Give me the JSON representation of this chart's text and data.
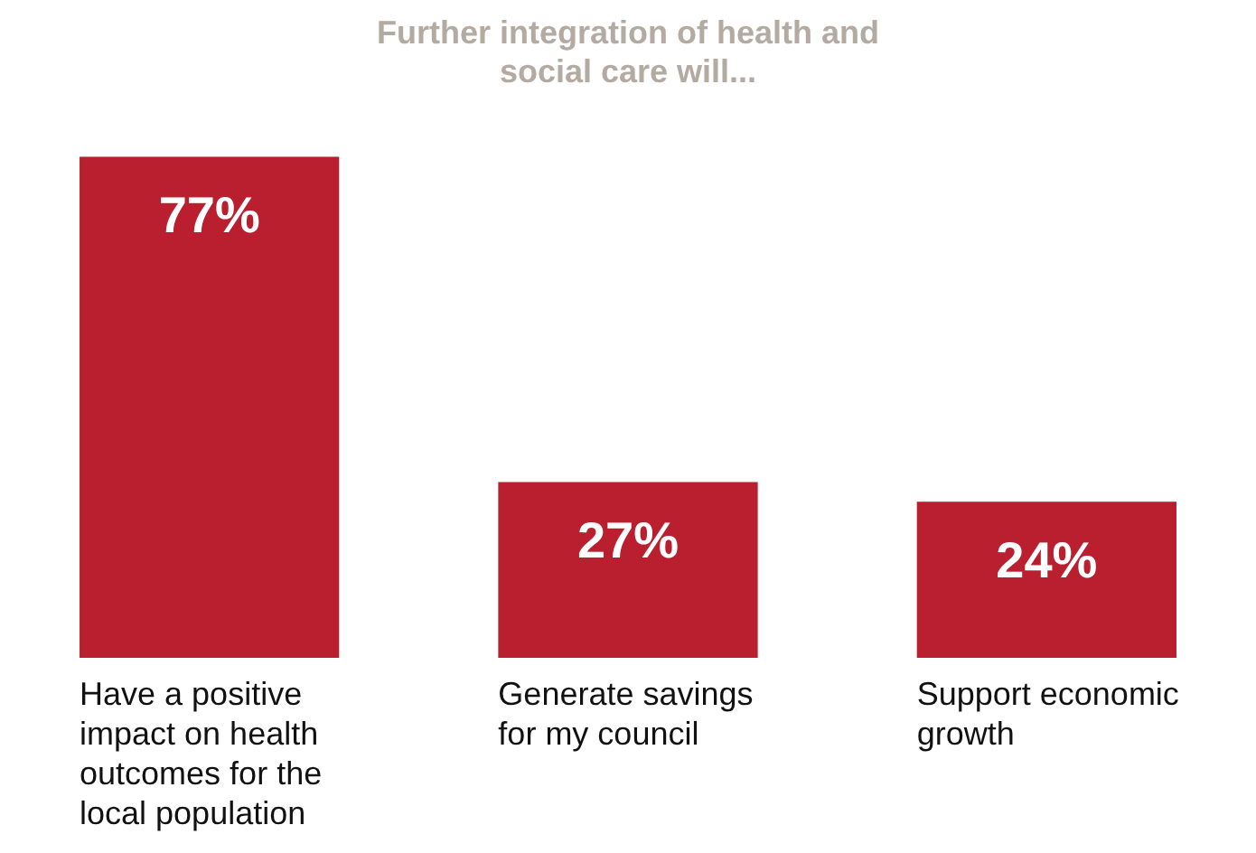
{
  "chart_data": {
    "type": "bar",
    "title": "Further integration of health and social care will...",
    "categories": [
      "Have a positive impact on health outcomes for the local population",
      "Generate savings for my council",
      "Support economic growth"
    ],
    "values": [
      77,
      27,
      24
    ],
    "value_labels": [
      "77%",
      "27%",
      "24%"
    ],
    "color": "#b91f2e",
    "grid": false,
    "legend": false
  }
}
